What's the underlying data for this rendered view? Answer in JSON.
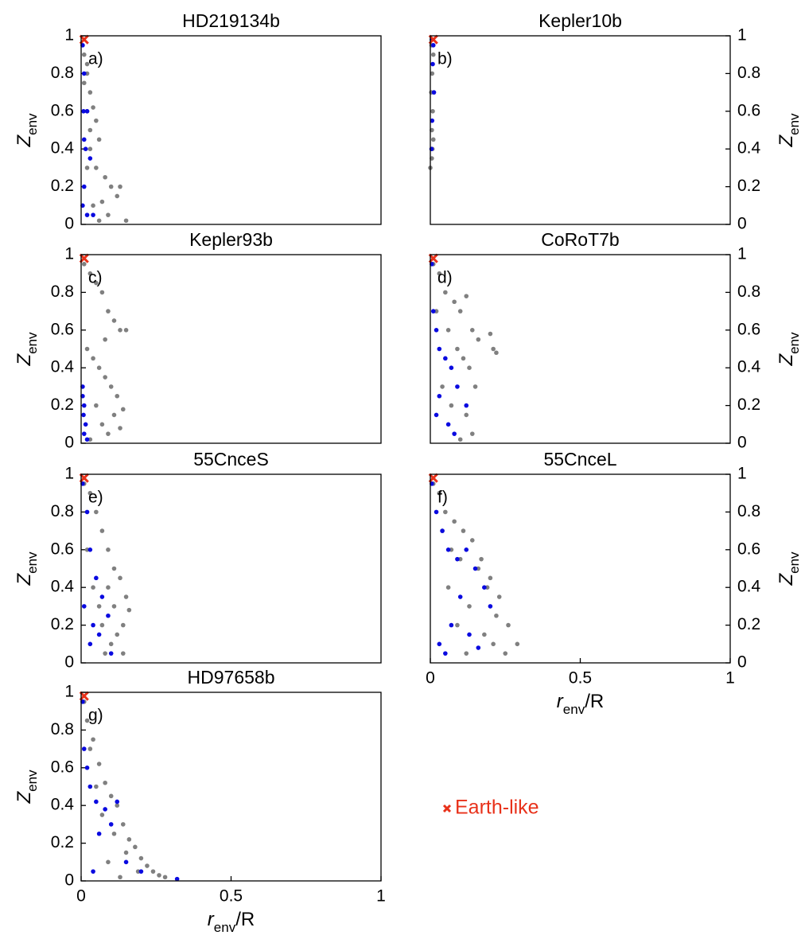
{
  "chart_data": [
    {
      "type": "scatter",
      "title": "HD219134b",
      "annotation": "a)",
      "ylabel": [
        "Z",
        "env"
      ],
      "y_axis_side": "left",
      "xlim": [
        0,
        1
      ],
      "ylim": [
        0,
        1
      ],
      "yticks": [
        0,
        0.2,
        0.4,
        0.6,
        0.8,
        1
      ],
      "series": [
        {
          "color": "#808080",
          "marker": "dot",
          "x": [
            0.01,
            0.02,
            0.03,
            0.04,
            0.05,
            0.06,
            0.08,
            0.1,
            0.12,
            0.15,
            0.02,
            0.03,
            0.05,
            0.07,
            0.09,
            0.04,
            0.02,
            0.06,
            0.03,
            0.13,
            0.01,
            0.02
          ],
          "y": [
            0.9,
            0.85,
            0.7,
            0.62,
            0.55,
            0.45,
            0.25,
            0.2,
            0.15,
            0.02,
            0.6,
            0.4,
            0.3,
            0.12,
            0.05,
            0.1,
            0.3,
            0.02,
            0.5,
            0.2,
            0.75,
            0.8
          ]
        },
        {
          "color": "#0a0ae0",
          "marker": "dot",
          "x": [
            0.005,
            0.01,
            0.008,
            0.02,
            0.015,
            0.03,
            0.01,
            0.04,
            0.005,
            0.02,
            0.01
          ],
          "y": [
            0.95,
            0.8,
            0.6,
            0.6,
            0.4,
            0.35,
            0.2,
            0.05,
            0.1,
            0.05,
            0.45
          ]
        },
        {
          "color": "#e8311a",
          "marker": "x",
          "x": [
            0.01
          ],
          "y": [
            0.98
          ]
        }
      ]
    },
    {
      "type": "scatter",
      "title": "Kepler10b",
      "annotation": "b)",
      "ylabel": [
        "Z",
        "env"
      ],
      "y_axis_side": "right",
      "xlim": [
        0,
        1
      ],
      "ylim": [
        0,
        1
      ],
      "yticks": [
        0,
        0.2,
        0.4,
        0.6,
        0.8,
        1
      ],
      "series": [
        {
          "color": "#808080",
          "marker": "dot",
          "x": [
            0.0,
            0.005,
            0.01,
            0.005,
            0.008,
            0.003,
            0.006,
            0.01,
            0.004,
            0.007
          ],
          "y": [
            0.3,
            0.35,
            0.45,
            0.5,
            0.6,
            0.7,
            0.8,
            0.9,
            0.95,
            0.4
          ]
        },
        {
          "color": "#0a0ae0",
          "marker": "dot",
          "x": [
            0.005,
            0.01,
            0.008,
            0.012,
            0.006,
            0.004
          ],
          "y": [
            0.98,
            0.95,
            0.85,
            0.7,
            0.55,
            0.4
          ]
        },
        {
          "color": "#e8311a",
          "marker": "x",
          "x": [
            0.01
          ],
          "y": [
            0.98
          ]
        }
      ]
    },
    {
      "type": "scatter",
      "title": "Kepler93b",
      "annotation": "c)",
      "ylabel": [
        "Z",
        "env"
      ],
      "y_axis_side": "left",
      "xlim": [
        0,
        1
      ],
      "ylim": [
        0,
        1
      ],
      "yticks": [
        0,
        0.2,
        0.4,
        0.6,
        0.8,
        1
      ],
      "series": [
        {
          "color": "#808080",
          "marker": "dot",
          "x": [
            0.01,
            0.03,
            0.05,
            0.07,
            0.09,
            0.11,
            0.13,
            0.15,
            0.02,
            0.04,
            0.06,
            0.08,
            0.1,
            0.12,
            0.14,
            0.05,
            0.07,
            0.09,
            0.03,
            0.11,
            0.13,
            0.08
          ],
          "y": [
            0.95,
            0.9,
            0.85,
            0.8,
            0.7,
            0.65,
            0.6,
            0.6,
            0.5,
            0.45,
            0.4,
            0.35,
            0.3,
            0.25,
            0.18,
            0.2,
            0.1,
            0.05,
            0.02,
            0.15,
            0.08,
            0.55
          ]
        },
        {
          "color": "#0a0ae0",
          "marker": "dot",
          "x": [
            0.005,
            0.01,
            0.008,
            0.015,
            0.01,
            0.02,
            0.005
          ],
          "y": [
            0.3,
            0.2,
            0.15,
            0.1,
            0.05,
            0.02,
            0.25
          ]
        },
        {
          "color": "#e8311a",
          "marker": "x",
          "x": [
            0.01
          ],
          "y": [
            0.98
          ]
        }
      ]
    },
    {
      "type": "scatter",
      "title": "CoRoT7b",
      "annotation": "d)",
      "ylabel": [
        "Z",
        "env"
      ],
      "y_axis_side": "right",
      "xlim": [
        0,
        1
      ],
      "ylim": [
        0,
        1
      ],
      "yticks": [
        0,
        0.2,
        0.4,
        0.6,
        0.8,
        1
      ],
      "series": [
        {
          "color": "#808080",
          "marker": "dot",
          "x": [
            0.01,
            0.03,
            0.05,
            0.08,
            0.1,
            0.12,
            0.14,
            0.16,
            0.2,
            0.21,
            0.22,
            0.06,
            0.09,
            0.11,
            0.13,
            0.15,
            0.04,
            0.07,
            0.12,
            0.14,
            0.1,
            0.02
          ],
          "y": [
            0.95,
            0.9,
            0.8,
            0.75,
            0.7,
            0.78,
            0.6,
            0.55,
            0.58,
            0.5,
            0.48,
            0.6,
            0.5,
            0.45,
            0.4,
            0.3,
            0.3,
            0.2,
            0.15,
            0.05,
            0.02,
            0.7
          ]
        },
        {
          "color": "#0a0ae0",
          "marker": "dot",
          "x": [
            0.005,
            0.01,
            0.02,
            0.03,
            0.05,
            0.07,
            0.09,
            0.12,
            0.03,
            0.06,
            0.08,
            0.02
          ],
          "y": [
            0.95,
            0.7,
            0.6,
            0.5,
            0.45,
            0.4,
            0.3,
            0.2,
            0.25,
            0.1,
            0.05,
            0.15
          ]
        },
        {
          "color": "#e8311a",
          "marker": "x",
          "x": [
            0.01
          ],
          "y": [
            0.98
          ]
        }
      ]
    },
    {
      "type": "scatter",
      "title": "55CnceS",
      "annotation": "e)",
      "ylabel": [
        "Z",
        "env"
      ],
      "y_axis_side": "left",
      "xlim": [
        0,
        1
      ],
      "ylim": [
        0,
        1
      ],
      "yticks": [
        0,
        0.2,
        0.4,
        0.6,
        0.8,
        1
      ],
      "series": [
        {
          "color": "#808080",
          "marker": "dot",
          "x": [
            0.01,
            0.03,
            0.05,
            0.07,
            0.09,
            0.11,
            0.13,
            0.15,
            0.16,
            0.14,
            0.12,
            0.1,
            0.08,
            0.06,
            0.04,
            0.02,
            0.07,
            0.11,
            0.14,
            0.09
          ],
          "y": [
            0.95,
            0.9,
            0.8,
            0.7,
            0.6,
            0.5,
            0.45,
            0.35,
            0.28,
            0.2,
            0.15,
            0.1,
            0.05,
            0.3,
            0.4,
            0.6,
            0.2,
            0.3,
            0.05,
            0.4
          ]
        },
        {
          "color": "#0a0ae0",
          "marker": "dot",
          "x": [
            0.005,
            0.02,
            0.03,
            0.05,
            0.07,
            0.09,
            0.04,
            0.06,
            0.01,
            0.1,
            0.03
          ],
          "y": [
            0.95,
            0.8,
            0.6,
            0.45,
            0.35,
            0.25,
            0.2,
            0.15,
            0.3,
            0.05,
            0.1
          ]
        },
        {
          "color": "#e8311a",
          "marker": "x",
          "x": [
            0.01
          ],
          "y": [
            0.98
          ]
        }
      ]
    },
    {
      "type": "scatter",
      "title": "55CnceL",
      "annotation": "f)",
      "ylabel": [
        "Z",
        "env"
      ],
      "y_axis_side": "right",
      "xlabel": [
        "r",
        "env",
        "/R"
      ],
      "xlim": [
        0,
        1
      ],
      "xticks": [
        0,
        0.5,
        1
      ],
      "ylim": [
        0,
        1
      ],
      "yticks": [
        0,
        0.2,
        0.4,
        0.6,
        0.8,
        1
      ],
      "series": [
        {
          "color": "#808080",
          "marker": "dot",
          "x": [
            0.01,
            0.03,
            0.05,
            0.08,
            0.11,
            0.14,
            0.17,
            0.2,
            0.23,
            0.26,
            0.29,
            0.25,
            0.22,
            0.19,
            0.16,
            0.13,
            0.1,
            0.07,
            0.04,
            0.18,
            0.21,
            0.12,
            0.09,
            0.06
          ],
          "y": [
            0.95,
            0.9,
            0.8,
            0.75,
            0.7,
            0.65,
            0.55,
            0.45,
            0.35,
            0.2,
            0.1,
            0.05,
            0.25,
            0.4,
            0.5,
            0.3,
            0.55,
            0.6,
            0.7,
            0.15,
            0.1,
            0.05,
            0.2,
            0.4
          ]
        },
        {
          "color": "#0a0ae0",
          "marker": "dot",
          "x": [
            0.005,
            0.02,
            0.04,
            0.06,
            0.09,
            0.12,
            0.15,
            0.18,
            0.2,
            0.1,
            0.07,
            0.03,
            0.13,
            0.05,
            0.16
          ],
          "y": [
            0.95,
            0.8,
            0.7,
            0.6,
            0.55,
            0.6,
            0.5,
            0.4,
            0.3,
            0.35,
            0.2,
            0.1,
            0.15,
            0.05,
            0.08
          ]
        },
        {
          "color": "#e8311a",
          "marker": "x",
          "x": [
            0.01
          ],
          "y": [
            0.98
          ]
        }
      ]
    },
    {
      "type": "scatter",
      "title": "HD97658b",
      "annotation": "g)",
      "ylabel": [
        "Z",
        "env"
      ],
      "y_axis_side": "left",
      "xlabel": [
        "r",
        "env",
        "/R"
      ],
      "xlim": [
        0,
        1
      ],
      "xticks": [
        0,
        0.5,
        1
      ],
      "ylim": [
        0,
        1
      ],
      "yticks": [
        0,
        0.2,
        0.4,
        0.6,
        0.8,
        1
      ],
      "series": [
        {
          "color": "#808080",
          "marker": "dot",
          "x": [
            0.01,
            0.02,
            0.04,
            0.06,
            0.08,
            0.1,
            0.12,
            0.14,
            0.16,
            0.18,
            0.2,
            0.22,
            0.24,
            0.26,
            0.28,
            0.15,
            0.11,
            0.07,
            0.05,
            0.09,
            0.19,
            0.13,
            0.03
          ],
          "y": [
            0.95,
            0.85,
            0.75,
            0.62,
            0.52,
            0.45,
            0.4,
            0.3,
            0.22,
            0.18,
            0.12,
            0.08,
            0.05,
            0.03,
            0.02,
            0.15,
            0.25,
            0.35,
            0.5,
            0.1,
            0.05,
            0.02,
            0.7
          ]
        },
        {
          "color": "#0a0ae0",
          "marker": "dot",
          "x": [
            0.005,
            0.01,
            0.02,
            0.03,
            0.05,
            0.08,
            0.1,
            0.12,
            0.06,
            0.15,
            0.2,
            0.32,
            0.04
          ],
          "y": [
            0.95,
            0.7,
            0.6,
            0.5,
            0.42,
            0.38,
            0.3,
            0.42,
            0.25,
            0.1,
            0.05,
            0.01,
            0.05
          ]
        },
        {
          "color": "#e8311a",
          "marker": "x",
          "x": [
            0.01
          ],
          "y": [
            0.98
          ]
        }
      ]
    }
  ],
  "legend": {
    "label": "Earth-like",
    "color": "#e8311a",
    "marker": "x"
  }
}
